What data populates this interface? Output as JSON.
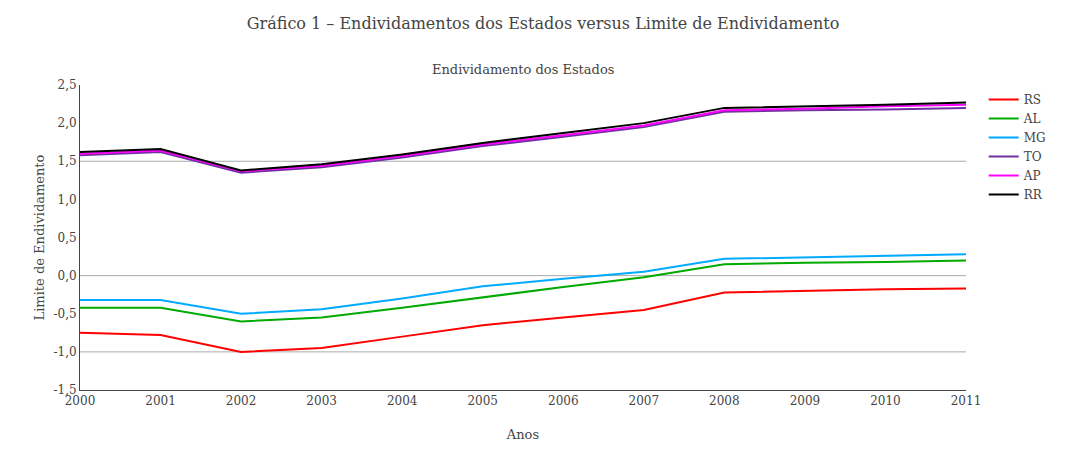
{
  "chart_data": {
    "type": "line",
    "title": "Gráfico 1 – Endividamentos dos Estados versus Limite de Endividamento",
    "subtitle": "Endividamento dos Estados",
    "xlabel": "Anos",
    "ylabel": "Limite de Endividamento",
    "x": [
      2000,
      2001,
      2002,
      2003,
      2004,
      2005,
      2006,
      2007,
      2008,
      2009,
      2010,
      2011
    ],
    "series": [
      {
        "name": "RS",
        "color": "#ff0000",
        "values": [
          -0.75,
          -0.78,
          -1.0,
          -0.95,
          -0.8,
          -0.65,
          -0.55,
          -0.45,
          -0.22,
          -0.2,
          -0.18,
          -0.17
        ]
      },
      {
        "name": "AL",
        "color": "#00aa00",
        "values": [
          -0.42,
          -0.42,
          -0.6,
          -0.55,
          -0.42,
          -0.28,
          -0.15,
          -0.02,
          0.15,
          0.17,
          0.18,
          0.2
        ]
      },
      {
        "name": "MG",
        "color": "#00aaff",
        "values": [
          -0.32,
          -0.32,
          -0.5,
          -0.44,
          -0.3,
          -0.14,
          -0.04,
          0.05,
          0.22,
          0.24,
          0.26,
          0.28
        ]
      },
      {
        "name": "TO",
        "color": "#7030a0",
        "values": [
          1.58,
          1.62,
          1.35,
          1.42,
          1.55,
          1.7,
          1.82,
          1.95,
          2.15,
          2.17,
          2.18,
          2.2
        ]
      },
      {
        "name": "AP",
        "color": "#ff00ff",
        "values": [
          1.6,
          1.64,
          1.37,
          1.44,
          1.57,
          1.72,
          1.84,
          1.97,
          2.17,
          2.19,
          2.22,
          2.24
        ]
      },
      {
        "name": "RR",
        "color": "#000000",
        "values": [
          1.62,
          1.66,
          1.38,
          1.46,
          1.59,
          1.74,
          1.87,
          2.0,
          2.2,
          2.22,
          2.24,
          2.27
        ]
      }
    ],
    "hlines": {
      "values": [
        1.5,
        -1.0,
        0.0
      ],
      "color": "#aaaaaa"
    },
    "xlim": [
      2000,
      2011
    ],
    "xticks": [
      2000,
      2001,
      2002,
      2003,
      2004,
      2005,
      2006,
      2007,
      2008,
      2009,
      2010,
      2011
    ],
    "ylim": [
      -1.5,
      2.5
    ],
    "yticks": [
      {
        "value": -1.5,
        "label": "-1,5"
      },
      {
        "value": -1.0,
        "label": "-1,0"
      },
      {
        "value": -0.5,
        "label": "-0,5"
      },
      {
        "value": 0.0,
        "label": "0,0"
      },
      {
        "value": 0.5,
        "label": "0,5"
      },
      {
        "value": 1.0,
        "label": "1,0"
      },
      {
        "value": 1.5,
        "label": "1,5"
      },
      {
        "value": 2.0,
        "label": "2,0"
      },
      {
        "value": 2.5,
        "label": "2,5"
      }
    ],
    "grid": false,
    "legend": "right"
  }
}
